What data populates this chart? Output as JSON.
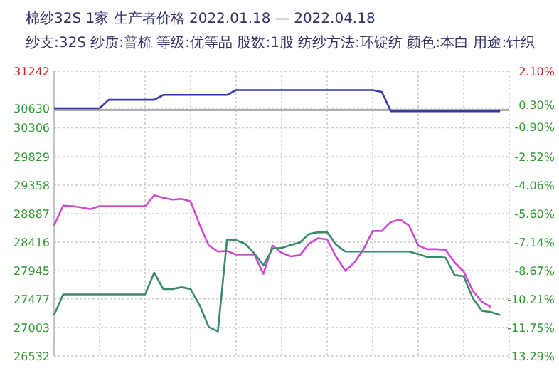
{
  "chart_data": {
    "type": "line",
    "title": "棉纱32S  1家 生产者价格 2022.01.18 — 2022.04.18",
    "subtitle": "纱支:32S 纱质:普梳 等级:优等品 股数:1股 纺纱方法:环锭纺 颜色:本白 用途:针织",
    "categories": [
      null,
      null,
      null,
      null,
      null,
      null,
      null,
      null,
      null,
      null,
      null,
      null,
      null,
      null,
      null,
      null,
      null,
      null,
      null,
      null,
      null,
      null,
      null,
      null,
      null,
      null,
      null,
      null,
      null,
      null,
      null,
      null,
      null,
      null,
      null,
      null,
      null,
      null,
      null,
      null,
      null,
      null,
      null,
      null,
      null,
      null,
      null,
      null,
      null,
      null
    ],
    "ylim": [
      26532,
      31242
    ],
    "yticks": [
      26532,
      27003,
      27477,
      27945,
      28416,
      28887,
      29358,
      29829,
      30306,
      30630,
      31242
    ],
    "y2lim": [
      -13.29,
      2.1
    ],
    "y2ticks": [
      {
        "value": -13.29,
        "label": "-13.29%"
      },
      {
        "value": -11.75,
        "label": "-11.75%"
      },
      {
        "value": -10.21,
        "label": "-10.21%"
      },
      {
        "value": -8.67,
        "label": "-8.67%"
      },
      {
        "value": -7.14,
        "label": "-7.14%"
      },
      {
        "value": -5.6,
        "label": "-5.60%"
      },
      {
        "value": -4.06,
        "label": "-4.06%"
      },
      {
        "value": -2.52,
        "label": "-2.52%"
      },
      {
        "value": -0.9,
        "label": "-0.90%"
      },
      {
        "value": 0.3,
        "label": "0.30%"
      },
      {
        "value": 2.1,
        "label": "2.10%"
      }
    ],
    "tick_labels": "y",
    "grid": true,
    "ref_lines": [
      {
        "axis": "y2",
        "value": 0,
        "color": "#b0b0b0"
      }
    ],
    "series": [
      {
        "color": "#3838a8",
        "values": [
          30630,
          30630,
          30630,
          30630,
          30630,
          30630,
          30770,
          30770,
          30770,
          30770,
          30770,
          30770,
          30850,
          30850,
          30850,
          30850,
          30850,
          30850,
          30850,
          30850,
          30930,
          30930,
          30930,
          30930,
          30930,
          30930,
          30930,
          30930,
          30930,
          30930,
          30930,
          30930,
          30930,
          30930,
          30930,
          30930,
          30900,
          30580,
          30580,
          30580,
          30580,
          30580,
          30580,
          30580,
          30580,
          30580,
          30580,
          30580,
          30580,
          30580
        ]
      },
      {
        "color": "#d048d0",
        "values": [
          28690,
          29020,
          29010,
          28990,
          28960,
          29010,
          29010,
          29010,
          29010,
          29010,
          29010,
          29190,
          29150,
          29120,
          29130,
          29090,
          28700,
          28360,
          28260,
          28270,
          28210,
          28210,
          28210,
          27890,
          28360,
          28240,
          28180,
          28200,
          28390,
          28480,
          28460,
          28170,
          27940,
          28080,
          28300,
          28600,
          28600,
          28750,
          28790,
          28690,
          28360,
          28300,
          28300,
          28290,
          28080,
          27930,
          27610,
          27430,
          27340,
          null
        ]
      },
      {
        "color": "#3a8a6a",
        "values": [
          27210,
          27550,
          27550,
          27550,
          27550,
          27550,
          27550,
          27550,
          27550,
          27550,
          27550,
          27910,
          27640,
          27640,
          27670,
          27640,
          27370,
          27010,
          26940,
          28460,
          28450,
          28390,
          28230,
          28030,
          28310,
          28320,
          28370,
          28410,
          28550,
          28580,
          28580,
          28370,
          28260,
          28260,
          28260,
          28260,
          28260,
          28260,
          28260,
          28260,
          28220,
          28170,
          28170,
          28160,
          27870,
          27850,
          27490,
          27280,
          27260,
          27210
        ]
      }
    ]
  }
}
